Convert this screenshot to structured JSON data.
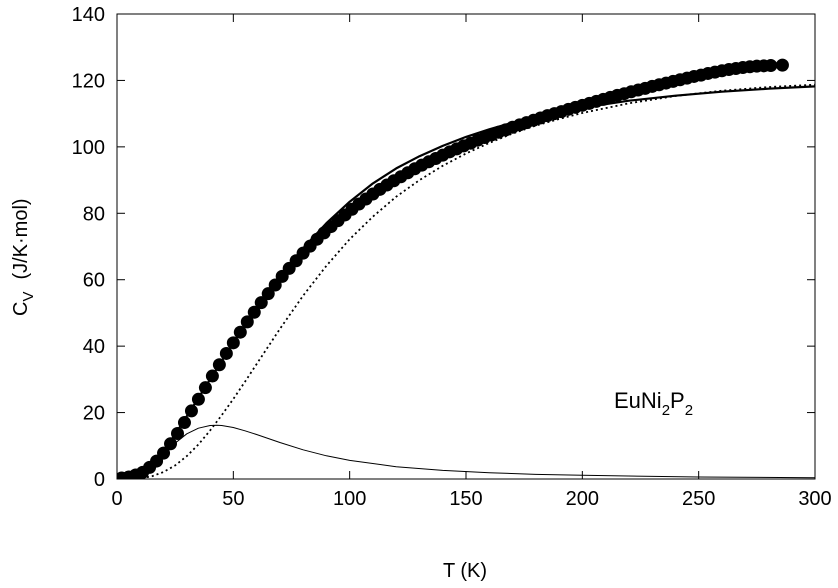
{
  "chart_data": {
    "type": "line",
    "xlabel": "T (K)",
    "ylabel": {
      "main": "C",
      "sub": "V",
      "unit": "(J/K·mol)"
    },
    "annotation": {
      "parts": [
        "EuNi",
        "2",
        "P",
        "2"
      ]
    },
    "xlim": [
      0,
      300
    ],
    "ylim": [
      0,
      140
    ],
    "xticks": [
      0,
      50,
      100,
      150,
      200,
      250,
      300
    ],
    "yticks": [
      0,
      20,
      40,
      60,
      80,
      100,
      120,
      140
    ],
    "grid": false,
    "legend": "none",
    "series": [
      {
        "style": "markers-filled-circle",
        "color": "#000000",
        "x": [
          2,
          5,
          8,
          11,
          14,
          17,
          20,
          23,
          26,
          29,
          32,
          35,
          38,
          41,
          44,
          47,
          50,
          53,
          56,
          59,
          62,
          65,
          68,
          71,
          74,
          77,
          80,
          83,
          86,
          89,
          92,
          95,
          98,
          101,
          104,
          107,
          110,
          113,
          116,
          119,
          122,
          125,
          128,
          131,
          134,
          137,
          140,
          143,
          146,
          149,
          152,
          155,
          158,
          161,
          164,
          167,
          170,
          173,
          176,
          179,
          182,
          185,
          188,
          191,
          194,
          197,
          200,
          203,
          206,
          209,
          212,
          215,
          218,
          221,
          224,
          227,
          230,
          233,
          236,
          239,
          242,
          245,
          248,
          251,
          254,
          257,
          260,
          263,
          266,
          269,
          272,
          275,
          278,
          281,
          286
        ],
        "y": [
          0.3,
          0.6,
          1.2,
          2.0,
          3.5,
          5.4,
          7.8,
          10.6,
          13.7,
          17.0,
          20.5,
          24.0,
          27.5,
          31.0,
          34.4,
          37.8,
          41.0,
          44.2,
          47.3,
          50.2,
          53.1,
          55.8,
          58.4,
          61.0,
          63.4,
          65.7,
          68.0,
          70.1,
          72.2,
          74.1,
          76.0,
          77.8,
          79.5,
          81.2,
          82.8,
          84.3,
          85.8,
          87.2,
          88.5,
          89.8,
          91.0,
          92.2,
          93.4,
          94.5,
          95.5,
          96.5,
          97.5,
          98.5,
          99.4,
          100.3,
          101.1,
          102.0,
          102.8,
          103.6,
          104.4,
          105.1,
          105.9,
          106.6,
          107.3,
          108.0,
          108.7,
          109.4,
          110.0,
          110.6,
          111.3,
          111.9,
          112.5,
          113.1,
          113.7,
          114.3,
          114.9,
          115.5,
          116.0,
          116.6,
          117.1,
          117.6,
          118.2,
          118.7,
          119.2,
          119.7,
          120.2,
          120.7,
          121.2,
          121.6,
          122.1,
          122.5,
          122.9,
          123.3,
          123.6,
          123.9,
          124.1,
          124.3,
          124.4,
          124.5,
          124.6
        ]
      },
      {
        "style": "solid-thick",
        "color": "#000000",
        "x": [
          0,
          5,
          10,
          15,
          20,
          25,
          30,
          35,
          40,
          45,
          50,
          60,
          70,
          80,
          90,
          100,
          110,
          120,
          130,
          140,
          150,
          160,
          170,
          180,
          190,
          200,
          220,
          240,
          260,
          280,
          300
        ],
        "y": [
          0,
          0.1,
          0.8,
          3.5,
          8.2,
          13.5,
          18.9,
          24.4,
          30.0,
          35.5,
          41.0,
          51.5,
          61.0,
          69.5,
          77.0,
          83.5,
          89.0,
          93.5,
          97.2,
          100.3,
          103.0,
          105.3,
          107.3,
          109.0,
          110.5,
          111.8,
          113.9,
          115.4,
          116.6,
          117.5,
          118.2
        ]
      },
      {
        "style": "dotted",
        "color": "#000000",
        "x": [
          0,
          10,
          15,
          20,
          25,
          30,
          35,
          40,
          45,
          50,
          55,
          60,
          70,
          80,
          90,
          100,
          110,
          120,
          130,
          140,
          150,
          160,
          170,
          180,
          190,
          200,
          220,
          240,
          260,
          280,
          300
        ],
        "y": [
          0,
          0.2,
          0.8,
          2.1,
          4.1,
          6.9,
          10.4,
          14.6,
          19.2,
          24.1,
          29.3,
          34.6,
          45.2,
          55.2,
          64.2,
          72.2,
          79.0,
          85.0,
          90.0,
          94.3,
          98.0,
          101.2,
          104.0,
          106.4,
          108.4,
          110.2,
          113.1,
          115.3,
          116.9,
          118.0,
          118.7
        ]
      },
      {
        "style": "solid-thin",
        "color": "#000000",
        "x": [
          0,
          5,
          10,
          15,
          20,
          25,
          30,
          35,
          40,
          43,
          45,
          50,
          55,
          60,
          70,
          80,
          90,
          100,
          120,
          140,
          160,
          180,
          200,
          250,
          300
        ],
        "y": [
          0,
          0.1,
          0.8,
          3.2,
          7.0,
          10.8,
          13.6,
          15.3,
          16.1,
          16.2,
          16.1,
          15.5,
          14.5,
          13.4,
          11.0,
          8.8,
          7.0,
          5.6,
          3.7,
          2.6,
          1.9,
          1.4,
          1.1,
          0.6,
          0.4
        ]
      }
    ]
  }
}
